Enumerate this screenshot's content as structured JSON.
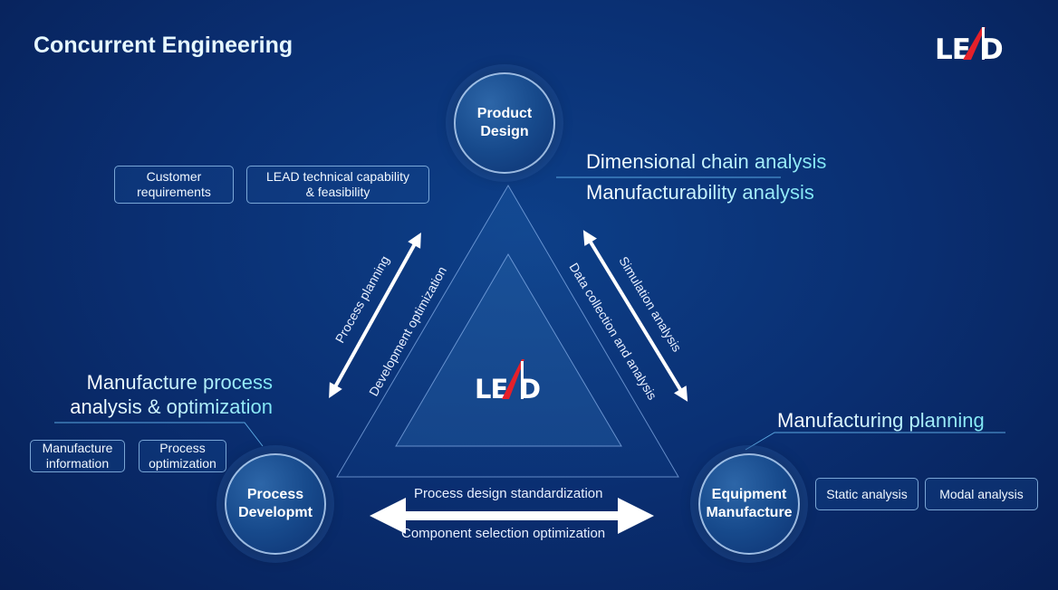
{
  "title": "Concurrent Engineering",
  "logo": "LEAD",
  "nodes": {
    "product": "Product Design",
    "process": "Process Developmt",
    "equipment": "Equipment Manufacture"
  },
  "product_notes": [
    "Dimensional chain analysis",
    "Manufacturability analysis"
  ],
  "process_notes": [
    "Manufacture process",
    "analysis & optimization"
  ],
  "equipment_note": "Manufacturing planning",
  "boxes": {
    "customer": "Customer requirements",
    "lead_tech": "LEAD technical capability & feasibility",
    "manufacture_info": "Manufacture information",
    "process_opt": "Process optimization",
    "static": "Static analysis",
    "modal": "Modal analysis"
  },
  "arrows": {
    "left_outer": "Process planning",
    "left_inner": "Development optimization",
    "right_outer": "Simulation analysis",
    "right_inner": "Data collection and analysis",
    "bottom_top": "Process design standardization",
    "bottom_bottom": "Component selection optimization"
  },
  "colors": {
    "background": "#0a2f72",
    "accent": "#7fe8f5",
    "logo_red": "#e5202a"
  }
}
